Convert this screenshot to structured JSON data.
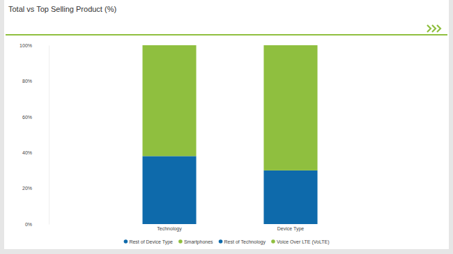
{
  "chart_data": {
    "type": "bar",
    "title": "Total vs Top Selling Product (%)",
    "categories": [
      "Technology",
      "Device Type"
    ],
    "series": [
      {
        "name": "Rest of Device Type",
        "color": "#0e6aab",
        "values": [
          null,
          30
        ]
      },
      {
        "name": "Smartphones",
        "color": "#8fbf3f",
        "values": [
          null,
          70
        ]
      },
      {
        "name": "Rest of Technology",
        "color": "#0e6aab",
        "values": [
          38,
          null
        ]
      },
      {
        "name": "Voice Over LTE (VoLTE)",
        "color": "#8fbf3f",
        "values": [
          62,
          null
        ]
      }
    ],
    "ylim": [
      0,
      100
    ],
    "yticks": [
      {
        "value": 0,
        "label": "0%"
      },
      {
        "value": 20,
        "label": "20%"
      },
      {
        "value": 40,
        "label": "40%"
      },
      {
        "value": 60,
        "label": "60%"
      },
      {
        "value": 80,
        "label": "80%"
      },
      {
        "value": 100,
        "label": "100%"
      }
    ],
    "stacked": true,
    "grid": false,
    "legend": "bottom"
  }
}
